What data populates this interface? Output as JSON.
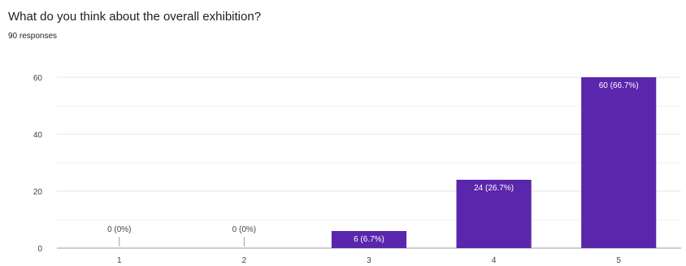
{
  "question": {
    "title": "What do you think about the overall exhibition?",
    "responses": "90 responses"
  },
  "chart_data": {
    "type": "bar",
    "title": "What do you think about the overall exhibition?",
    "subtitle": "90 responses",
    "categories": [
      "1",
      "2",
      "3",
      "4",
      "5"
    ],
    "values": [
      0,
      0,
      6,
      24,
      60
    ],
    "data_labels": [
      "0 (0%)",
      "0 (0%)",
      "6 (6.7%)",
      "24 (26.7%)",
      "60 (66.7%)"
    ],
    "yticks": [
      "0",
      "20",
      "40",
      "60"
    ],
    "ylim": [
      0,
      60
    ],
    "xlabel": "",
    "ylabel": "",
    "grid": true,
    "legend": "none",
    "bar_color": "#5a26ab"
  }
}
